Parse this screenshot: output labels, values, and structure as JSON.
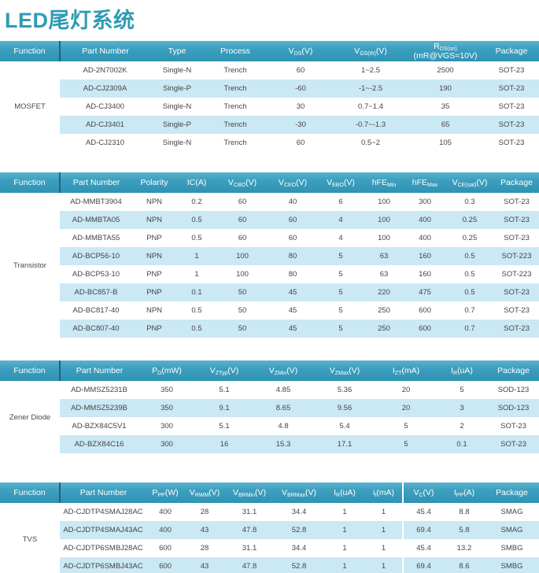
{
  "title": "LED尾灯系统",
  "colors": {
    "accent_title": "#2E9BB3",
    "header_gradient_top": "#5CB3CD",
    "header_gradient_bottom": "#2F93B4",
    "header_function_divider": "#2B5F7B",
    "row_stripe": "#CBE8F5",
    "body_text": "#454545",
    "header_text": "#FFFFFF"
  },
  "tables": [
    {
      "id": "mosfet",
      "function": "MOSFET",
      "columns": [
        "Function",
        "Part Number",
        "Type",
        "Process",
        "V_{DS}(V)",
        "V_{GS(th)}(V)",
        "R_{DS(on)}\n(mR@VGS=10V)",
        "Package"
      ],
      "rows": [
        [
          "AD-2N7002K",
          "Single-N",
          "Trench",
          "60",
          "1~2.5",
          "2500",
          "SOT-23"
        ],
        [
          "AD-CJ2309A",
          "Single-P",
          "Trench",
          "-60",
          "-1~-2.5",
          "190",
          "SOT-23"
        ],
        [
          "AD-CJ3400",
          "Single-N",
          "Trench",
          "30",
          "0.7~1.4",
          "35",
          "SOT-23"
        ],
        [
          "AD-CJ3401",
          "Single-P",
          "Trench",
          "-30",
          "-0.7~-1.3",
          "65",
          "SOT-23"
        ],
        [
          "AD-CJ2310",
          "Single-N",
          "Trench",
          "60",
          "0.5~2",
          "105",
          "SOT-23"
        ]
      ]
    },
    {
      "id": "transistor",
      "function": "Transistor",
      "columns": [
        "Function",
        "Part Number",
        "Polarity",
        "IC(A)",
        "V_{CBO}(V)",
        "V_{CEO}(V)",
        "V_{EBO}(V)",
        "hFE_{Min}",
        "hFE_{Max}",
        "V_{CE(sat)}(V)",
        "Package"
      ],
      "rows": [
        [
          "AD-MMBT3904",
          "NPN",
          "0.2",
          "60",
          "40",
          "6",
          "100",
          "300",
          "0.3",
          "SOT-23"
        ],
        [
          "AD-MMBTA05",
          "NPN",
          "0.5",
          "60",
          "60",
          "4",
          "100",
          "400",
          "0.25",
          "SOT-23"
        ],
        [
          "AD-MMBTA55",
          "PNP",
          "0.5",
          "60",
          "60",
          "4",
          "100",
          "400",
          "0.25",
          "SOT-23"
        ],
        [
          "AD-BCP56-10",
          "NPN",
          "1",
          "100",
          "80",
          "5",
          "63",
          "160",
          "0.5",
          "SOT-223"
        ],
        [
          "AD-BCP53-10",
          "PNP",
          "1",
          "100",
          "80",
          "5",
          "63",
          "160",
          "0.5",
          "SOT-223"
        ],
        [
          "AD-BC857-B",
          "PNP",
          "0.1",
          "50",
          "45",
          "5",
          "220",
          "475",
          "0.5",
          "SOT-23"
        ],
        [
          "AD-BC817-40",
          "NPN",
          "0.5",
          "50",
          "45",
          "5",
          "250",
          "600",
          "0.7",
          "SOT-23"
        ],
        [
          "AD-BC807-40",
          "PNP",
          "0.5",
          "50",
          "45",
          "5",
          "250",
          "600",
          "0.7",
          "SOT-23"
        ]
      ]
    },
    {
      "id": "zener-diode",
      "function": "Zener Diode",
      "columns": [
        "Function",
        "Part Number",
        "P_{D}(mW)",
        "V_{ZTyp}(V)",
        "V_{ZMin}(V)",
        "V_{ZMax}(V)",
        "I_{ZT}(mA)",
        "I_{R}(uA)",
        "Package"
      ],
      "rows": [
        [
          "AD-MMSZ5231B",
          "350",
          "5.1",
          "4.85",
          "5.36",
          "20",
          "5",
          "SOD-123"
        ],
        [
          "AD-MMSZ5239B",
          "350",
          "9.1",
          "8.65",
          "9.56",
          "20",
          "3",
          "SOD-123"
        ],
        [
          "AD-BZX84C5V1",
          "300",
          "5.1",
          "4.8",
          "5.4",
          "5",
          "2",
          "SOT-23"
        ],
        [
          "AD-BZX84C16",
          "300",
          "16",
          "15.3",
          "17.1",
          "5",
          "0.1",
          "SOT-23"
        ]
      ]
    },
    {
      "id": "tvs",
      "function": "TVS",
      "columns": [
        "Function",
        "Part Number",
        "P_{PP}(W)",
        "V_{RWM}(V)",
        "V_{BRMin}(V)",
        "V_{BRMax}(V)",
        "I_{R}(uA)",
        "i_{t}(mA)",
        "V_{C}(V)",
        "I_{PP}(A)",
        "Package"
      ],
      "divider_before_column": 8,
      "rows": [
        [
          "AD-CJDTP4SMAJ28AC",
          "400",
          "28",
          "31.1",
          "34.4",
          "1",
          "1",
          "45.4",
          "8.8",
          "SMAG"
        ],
        [
          "AD-CJDTP4SMAJ43AC",
          "400",
          "43",
          "47.8",
          "52.8",
          "1",
          "1",
          "69.4",
          "5.8",
          "SMAG"
        ],
        [
          "AD-CJDTP6SMBJ28AC",
          "600",
          "28",
          "31.1",
          "34.4",
          "1",
          "1",
          "45.4",
          "13.2",
          "SMBG"
        ],
        [
          "AD-CJDTP6SMBJ43AC",
          "600",
          "43",
          "47.8",
          "52.8",
          "1",
          "1",
          "69.4",
          "8.6",
          "SMBG"
        ]
      ]
    }
  ]
}
